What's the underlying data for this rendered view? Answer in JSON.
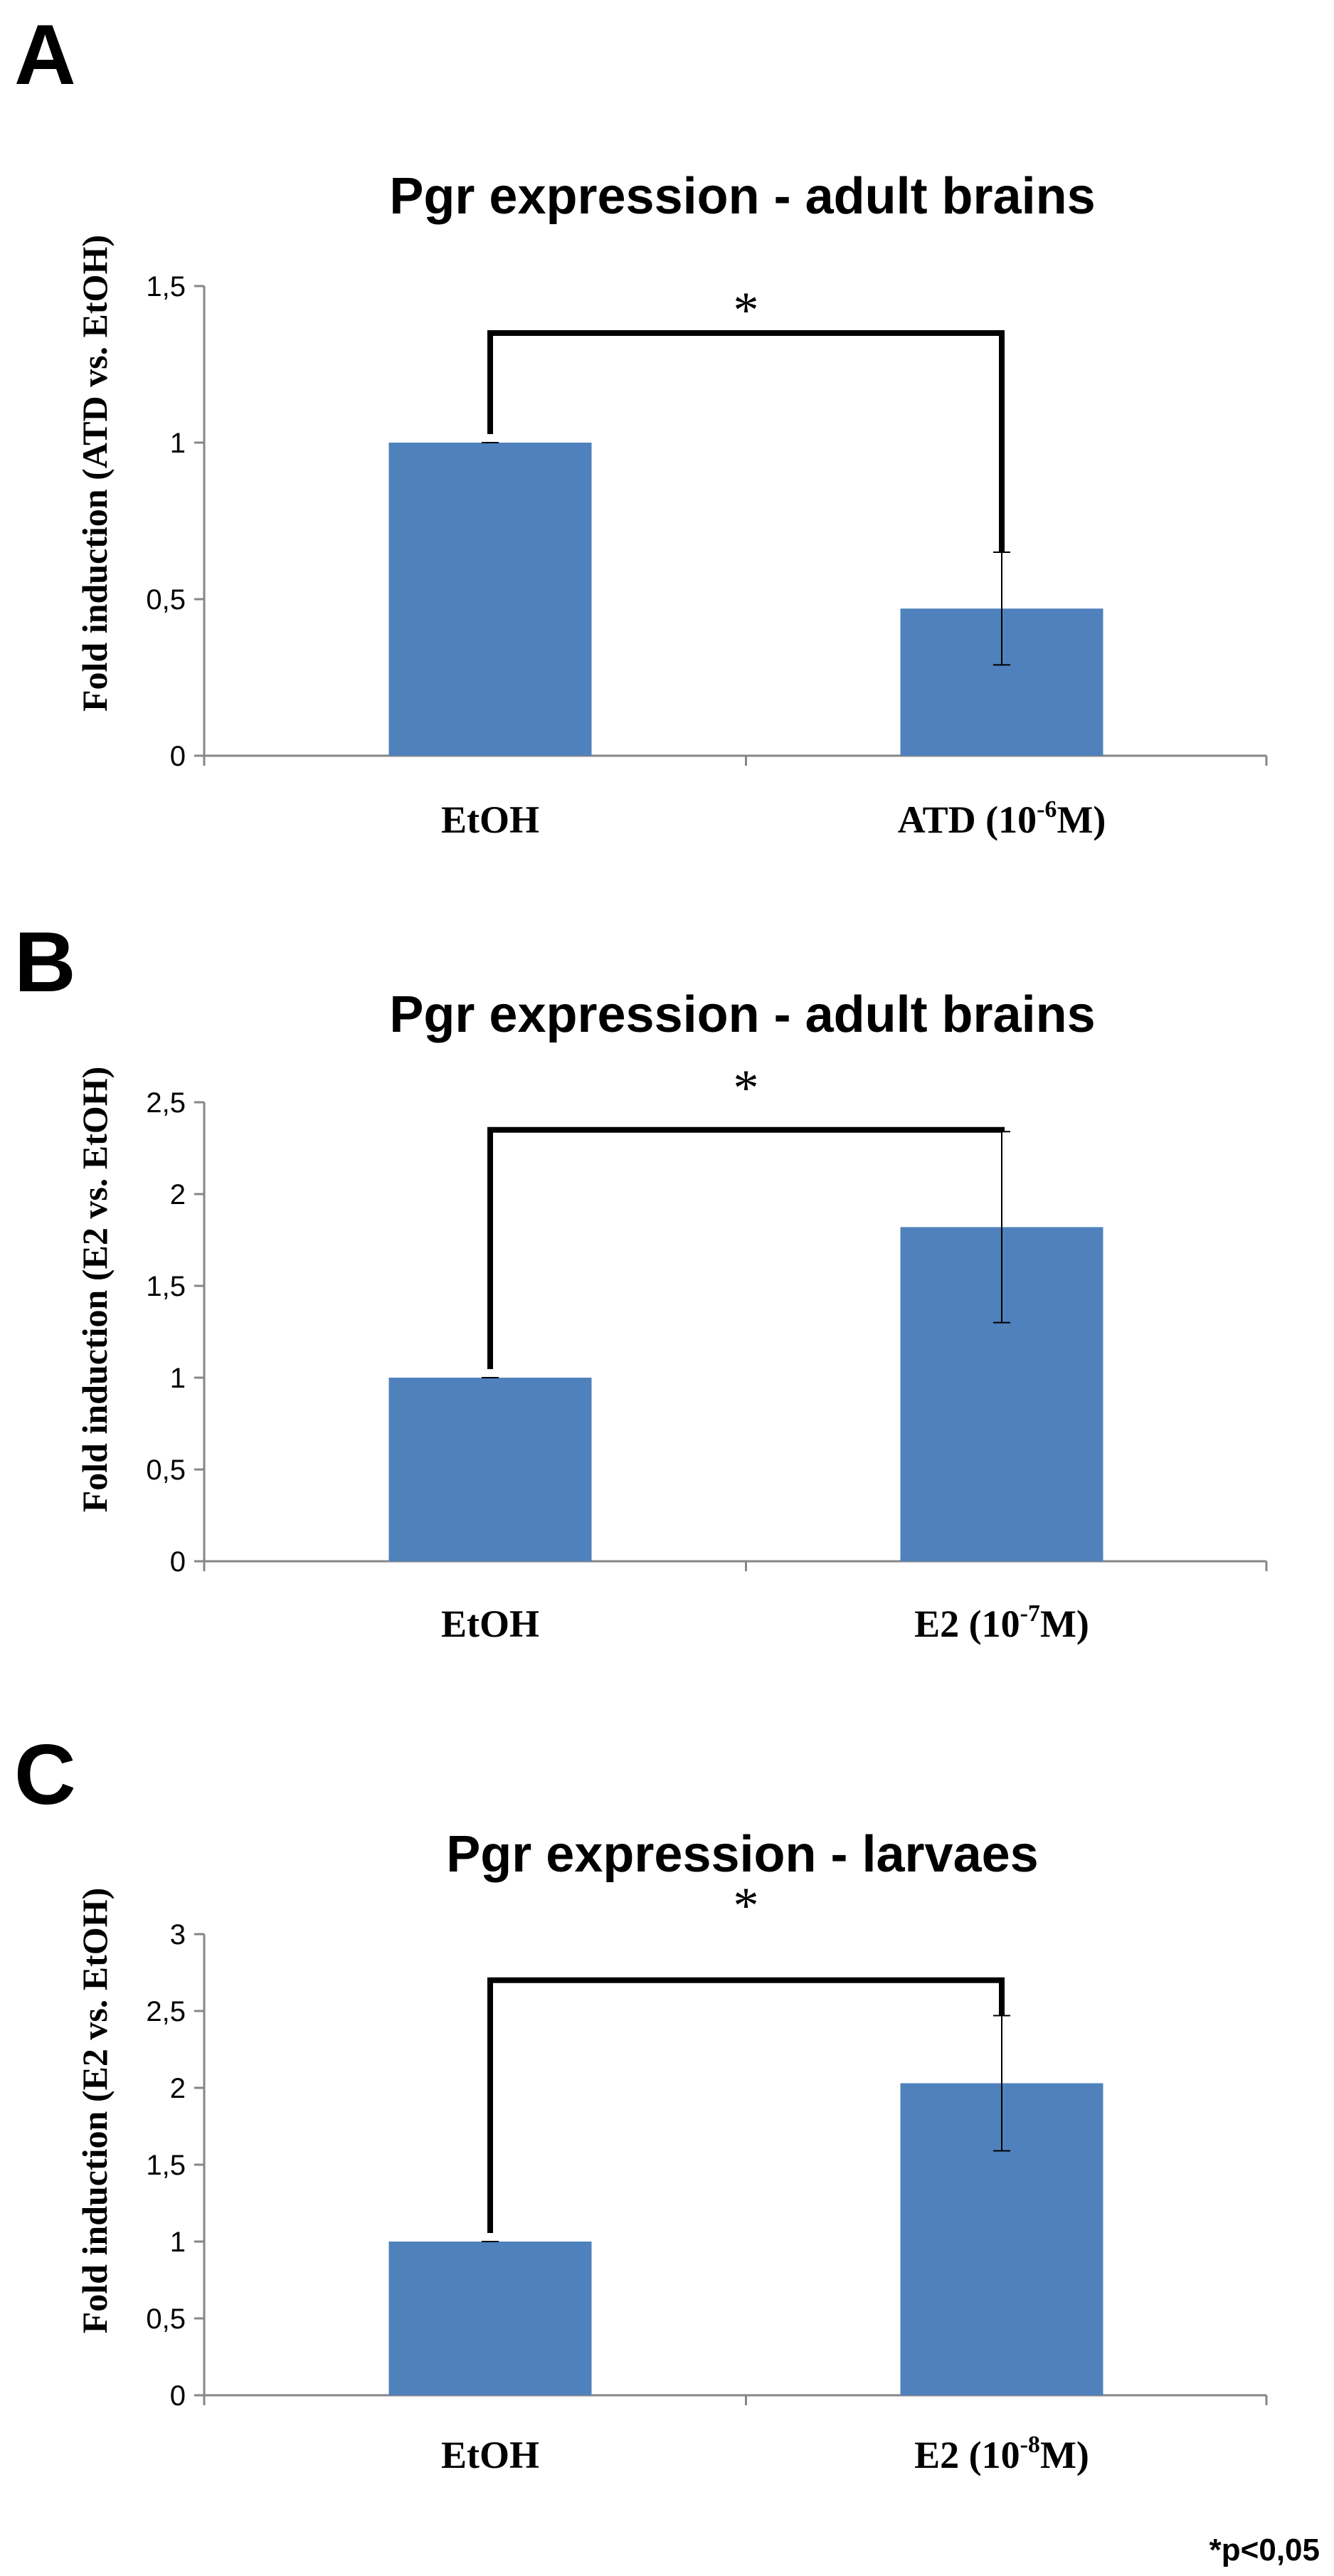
{
  "footnote": "*p<0,05",
  "colors": {
    "bar": "#4f81bd",
    "axis": "#868686",
    "bracket": "#000000"
  },
  "chart_data": [
    {
      "panel": "A",
      "type": "bar",
      "title": "Pgr expression - adult brains",
      "ylabel": "Fold induction (ATD vs. EtOH)",
      "xlabel": "",
      "categories": [
        {
          "base": "EtOH",
          "sup": "",
          "tail": ""
        },
        {
          "base": "ATD (10",
          "sup": "-6",
          "tail": "M)"
        }
      ],
      "values": [
        1.0,
        0.47
      ],
      "errors": [
        0.0,
        0.18
      ],
      "ylim": [
        0,
        1.5
      ],
      "yticks": [
        0,
        0.5,
        1,
        1.5
      ],
      "ytick_labels": [
        "0",
        "0,5",
        "1",
        "1,5"
      ],
      "significance": {
        "from": 0,
        "to": 1,
        "label": "*",
        "y": 1.35
      },
      "grid": false,
      "legend": "none"
    },
    {
      "panel": "B",
      "type": "bar",
      "title": "Pgr expression - adult brains",
      "ylabel": "Fold induction (E2 vs. EtOH)",
      "xlabel": "",
      "categories": [
        {
          "base": "EtOH",
          "sup": "",
          "tail": ""
        },
        {
          "base": "E2 (10",
          "sup": "-7",
          "tail": "M)"
        }
      ],
      "values": [
        1.0,
        1.82
      ],
      "errors": [
        0.0,
        0.52
      ],
      "ylim": [
        0,
        2.5
      ],
      "yticks": [
        0,
        0.5,
        1,
        1.5,
        2,
        2.5
      ],
      "ytick_labels": [
        "0",
        "0,5",
        "1",
        "1,5",
        "2",
        "2,5"
      ],
      "significance": {
        "from": 0,
        "to": 1,
        "label": "*",
        "y": 2.35
      },
      "grid": false,
      "legend": "none"
    },
    {
      "panel": "C",
      "type": "bar",
      "title": "Pgr expression - larvaes",
      "ylabel": "Fold induction (E2 vs. EtOH)",
      "xlabel": "",
      "categories": [
        {
          "base": "EtOH",
          "sup": "",
          "tail": ""
        },
        {
          "base": "E2 (10",
          "sup": "-8",
          "tail": "M)"
        }
      ],
      "values": [
        1.0,
        2.03
      ],
      "errors": [
        0.0,
        0.44
      ],
      "ylim": [
        0,
        3
      ],
      "yticks": [
        0,
        0.5,
        1,
        1.5,
        2,
        2.5,
        3
      ],
      "ytick_labels": [
        "0",
        "0,5",
        "1",
        "1,5",
        "2",
        "2,5",
        "3"
      ],
      "significance": {
        "from": 0,
        "to": 1,
        "label": "*",
        "y": 2.7
      },
      "grid": false,
      "legend": "none"
    }
  ]
}
